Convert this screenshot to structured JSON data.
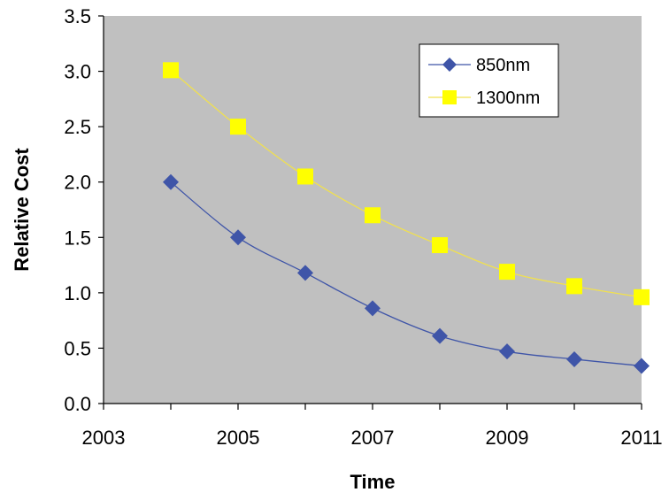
{
  "chart_data": {
    "type": "line",
    "title": "",
    "xlabel": "Time",
    "ylabel": "Relative Cost",
    "xlim": [
      2003,
      2011
    ],
    "ylim": [
      0,
      3.5
    ],
    "x_ticks": [
      "2003",
      "2005",
      "2007",
      "2009",
      "2011"
    ],
    "y_ticks": [
      "0.0",
      "0.5",
      "1.0",
      "1.5",
      "2.0",
      "2.5",
      "3.0",
      "3.5"
    ],
    "grid": false,
    "legend_position": "top-right",
    "plot_background": "#c0c0c0",
    "series": [
      {
        "name": "850nm",
        "color": "#3f55a8",
        "line_color": "#3f55a8",
        "marker": "diamond",
        "x": [
          2004,
          2005,
          2006,
          2007,
          2008,
          2009,
          2010,
          2011
        ],
        "values": [
          2.0,
          1.5,
          1.18,
          0.86,
          0.61,
          0.47,
          0.4,
          0.34
        ]
      },
      {
        "name": "1300nm",
        "color": "#ffff00",
        "line_color": "#f0e050",
        "marker": "square",
        "x": [
          2004,
          2005,
          2006,
          2007,
          2008,
          2009,
          2010,
          2011
        ],
        "values": [
          3.01,
          2.5,
          2.05,
          1.7,
          1.43,
          1.19,
          1.06,
          0.96
        ]
      }
    ]
  }
}
